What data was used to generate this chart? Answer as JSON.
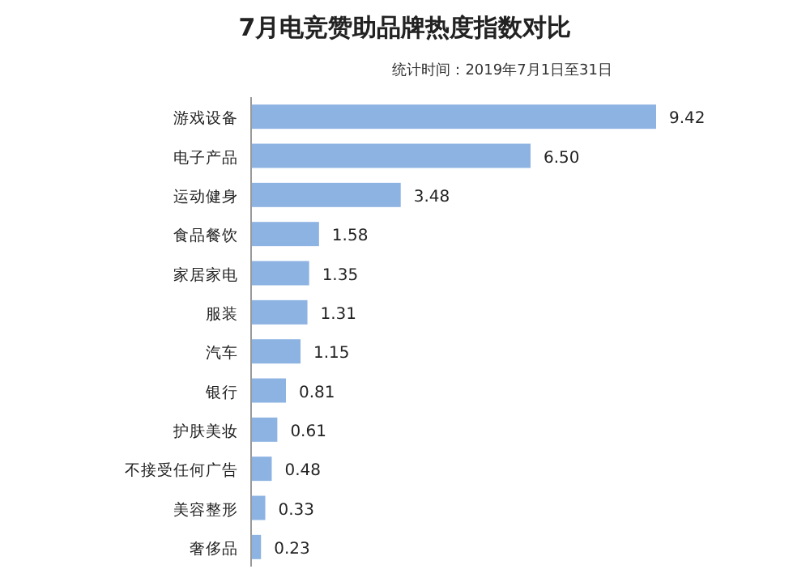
{
  "chart_data": {
    "type": "bar",
    "orientation": "horizontal",
    "title": "7月电竞赞助品牌热度指数对比",
    "subtitle": "统计时间：2019年7月1日至31日",
    "categories": [
      "游戏设备",
      "电子产品",
      "运动健身",
      "食品餐饮",
      "家居家电",
      "服装",
      "汽车",
      "银行",
      "护肤美妆",
      "不接受任何广告",
      "美容整形",
      "奢侈品"
    ],
    "values": [
      9.42,
      6.5,
      3.48,
      1.58,
      1.35,
      1.31,
      1.15,
      0.81,
      0.61,
      0.48,
      0.33,
      0.23
    ],
    "value_labels": [
      "9.42",
      "6.50",
      "3.48",
      "1.58",
      "1.35",
      "1.31",
      "1.15",
      "0.81",
      "0.61",
      "0.48",
      "0.33",
      "0.23"
    ],
    "color": "#8db3e2"
  }
}
